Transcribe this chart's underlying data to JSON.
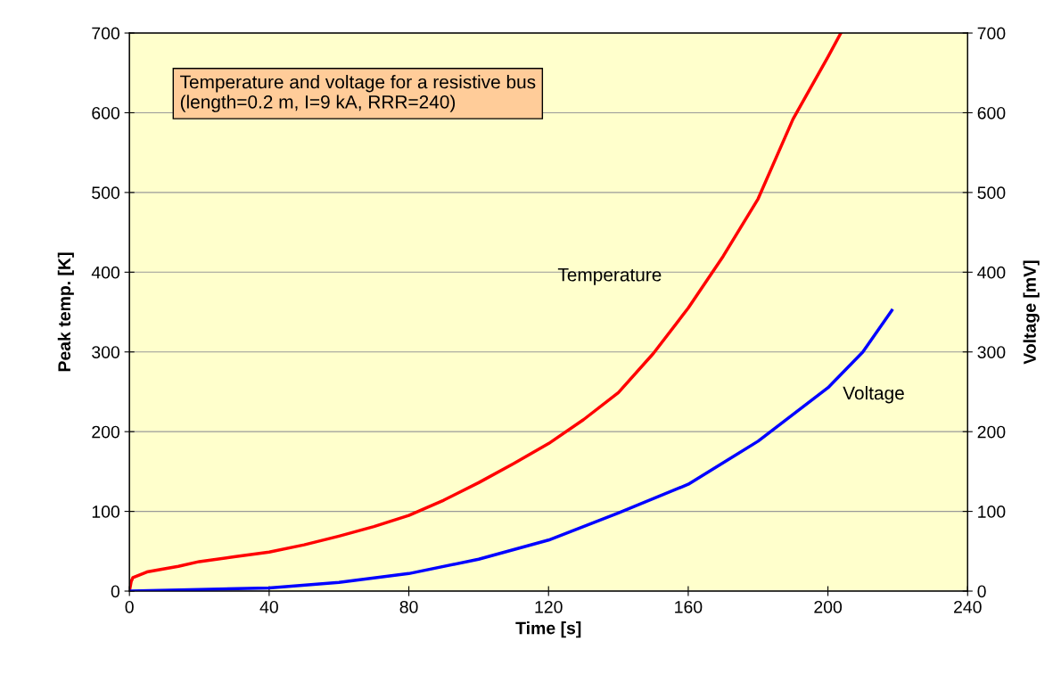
{
  "chart_data": {
    "type": "line",
    "xlabel": "Time [s]",
    "ylabel": "Peak temp. [K]",
    "y2label": "Voltage [mV]",
    "xlim": [
      0,
      240
    ],
    "xticks": [
      0,
      40,
      80,
      120,
      160,
      200,
      240
    ],
    "ylim": [
      0,
      700
    ],
    "yticks": [
      0,
      100,
      200,
      300,
      400,
      500,
      600,
      700
    ],
    "y2lim": [
      0,
      700
    ],
    "y2ticks": [
      0,
      100,
      200,
      300,
      400,
      500,
      600,
      700
    ],
    "grid": "y",
    "marker": "none",
    "line_style": "solid",
    "series": [
      {
        "color": "#ff0000",
        "x": [
          0,
          0.5,
          1,
          5,
          10,
          14,
          20,
          30,
          40,
          50,
          60,
          70,
          80,
          90,
          100,
          110,
          120,
          130,
          140,
          150,
          160,
          170,
          180,
          190,
          200,
          203.7
        ],
        "values": [
          0,
          12,
          17,
          24,
          28,
          31,
          37,
          43,
          49,
          58,
          69,
          81,
          95,
          114,
          136,
          160,
          185,
          215,
          249,
          298,
          355,
          420,
          492,
          592,
          670,
          700
        ]
      },
      {
        "color": "#0000ff",
        "axis": "y2",
        "x": [
          0,
          20,
          40,
          60,
          80,
          100,
          120,
          140,
          160,
          180,
          200,
          210,
          218.3
        ],
        "values": [
          0,
          2,
          4,
          11,
          22,
          40,
          64,
          98,
          134,
          188,
          255,
          300,
          352
        ]
      }
    ],
    "annotations": [
      {
        "text": "Temperature and voltage for a resistive bus\n(length=0.2 m, I=9 kA, RRR=240)"
      },
      "Temperature",
      "Voltage"
    ]
  }
}
